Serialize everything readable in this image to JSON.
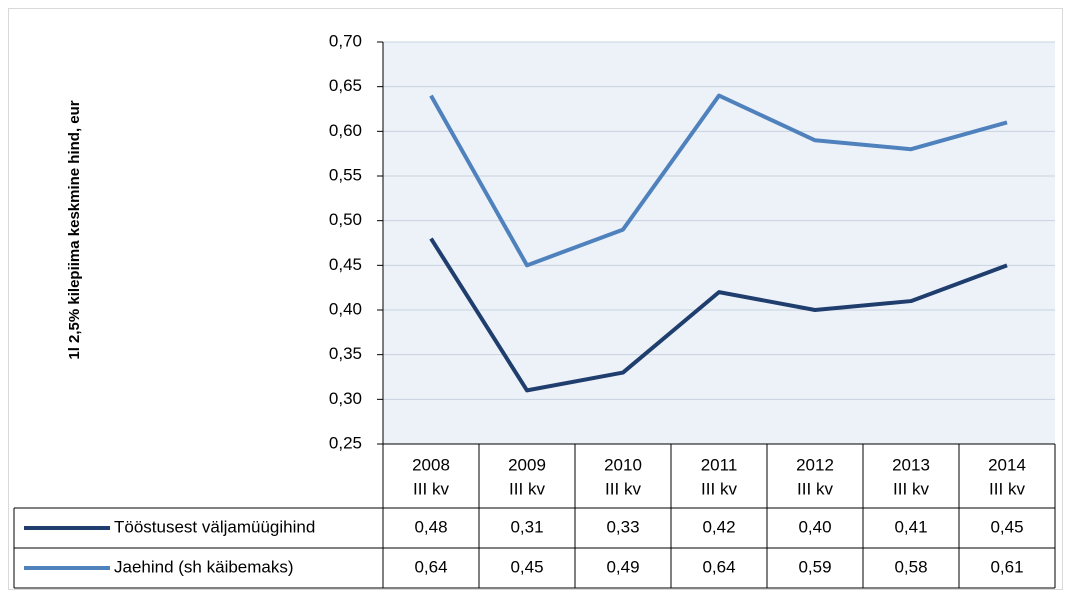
{
  "chart_data": {
    "type": "line",
    "y_label": "1l 2,5% kilepiima  keskmine hind, eur",
    "categories": [
      [
        "2008",
        "III kv"
      ],
      [
        "2009",
        "III kv"
      ],
      [
        "2010",
        "III kv"
      ],
      [
        "2011",
        "III kv"
      ],
      [
        "2012",
        "III kv"
      ],
      [
        "2013",
        "III kv"
      ],
      [
        "2014",
        "III kv"
      ]
    ],
    "series": [
      {
        "name": "Tööstusest väljamüügihind",
        "color": "#1f3e6e",
        "values": [
          0.48,
          0.31,
          0.33,
          0.42,
          0.4,
          0.41,
          0.45
        ],
        "value_labels": [
          "0,48",
          "0,31",
          "0,33",
          "0,42",
          "0,40",
          "0,41",
          "0,45"
        ]
      },
      {
        "name": "Jaehind (sh käibemaks)",
        "color": "#4f81bd",
        "values": [
          0.64,
          0.45,
          0.49,
          0.64,
          0.59,
          0.58,
          0.61
        ],
        "value_labels": [
          "0,64",
          "0,45",
          "0,49",
          "0,64",
          "0,59",
          "0,58",
          "0,61"
        ]
      }
    ],
    "ylim": [
      0.25,
      0.7
    ],
    "yticks": [
      {
        "value": 0.25,
        "label": "0,25"
      },
      {
        "value": 0.3,
        "label": "0,30"
      },
      {
        "value": 0.35,
        "label": "0,35"
      },
      {
        "value": 0.4,
        "label": "0,40"
      },
      {
        "value": 0.45,
        "label": "0,45"
      },
      {
        "value": 0.5,
        "label": "0,50"
      },
      {
        "value": 0.55,
        "label": "0,55"
      },
      {
        "value": 0.6,
        "label": "0,60"
      },
      {
        "value": 0.65,
        "label": "0,65"
      },
      {
        "value": 0.7,
        "label": "0,70"
      }
    ],
    "grid": true
  }
}
